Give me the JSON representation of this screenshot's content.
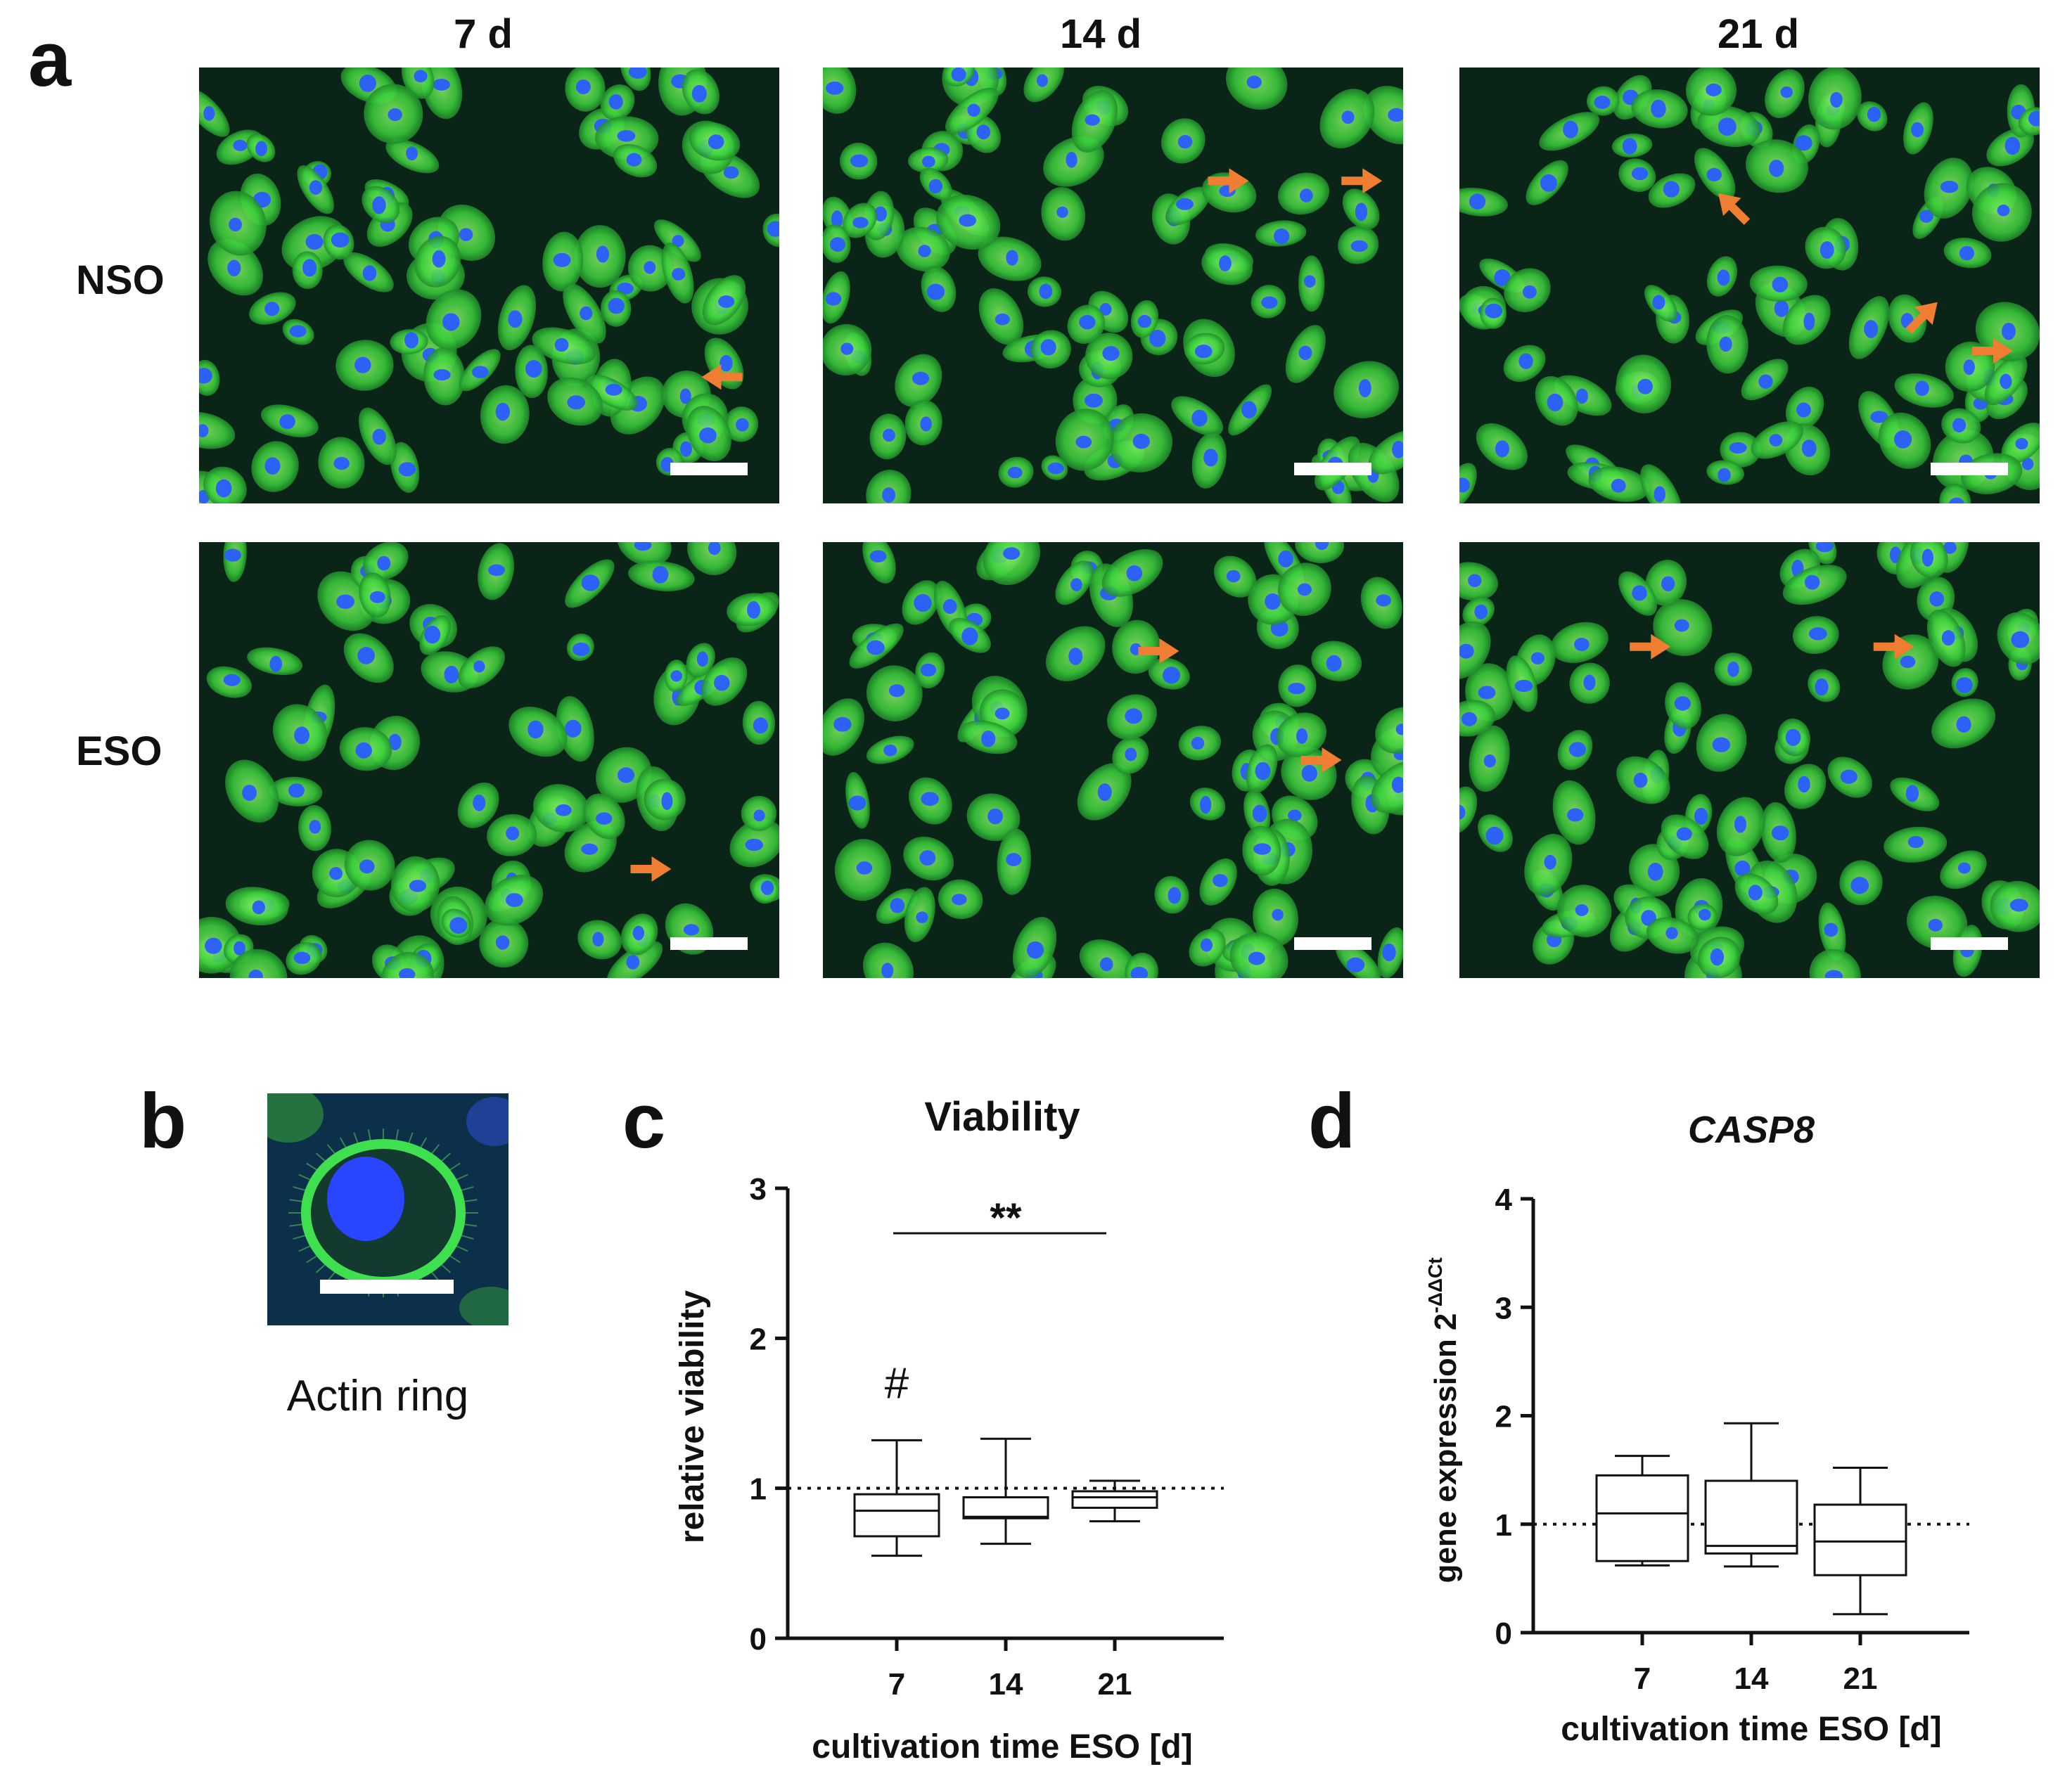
{
  "panels": {
    "a": "a",
    "b": "b",
    "c": "c",
    "d": "d"
  },
  "panel_a": {
    "columns": [
      "7 d",
      "14 d",
      "21 d"
    ],
    "rows": [
      "NSO",
      "ESO"
    ],
    "stain_colors": {
      "cytoskeleton": "#3cd23c",
      "nuclei": "#2a5cff",
      "background": "#0b2418",
      "arrow": "#ef7d32",
      "scale_bar": "#ffffff"
    }
  },
  "panel_b": {
    "caption": "Actin ring"
  },
  "chart_data": [
    {
      "type": "box",
      "panel": "c",
      "title": "Viability",
      "xlabel": "cultivation time ESO [d]",
      "ylabel": "relative viability",
      "categories": [
        "7",
        "14",
        "21"
      ],
      "ylim": [
        0,
        3
      ],
      "yticks": [
        "0",
        "1",
        "2",
        "3"
      ],
      "reference_line": 1,
      "boxes": [
        {
          "category": "7",
          "min": 0.55,
          "q1": 0.68,
          "median": 0.85,
          "q3": 0.96,
          "max": 1.32
        },
        {
          "category": "14",
          "min": 0.63,
          "q1": 0.8,
          "median": 0.81,
          "q3": 0.94,
          "max": 1.33
        },
        {
          "category": "21",
          "min": 0.78,
          "q1": 0.87,
          "median": 0.94,
          "q3": 0.98,
          "max": 1.05
        }
      ],
      "annotations": [
        {
          "text": "**",
          "from": "7",
          "to": "21"
        },
        {
          "text": "#",
          "category": "7"
        }
      ]
    },
    {
      "type": "box",
      "panel": "d",
      "title": "CASP8",
      "xlabel": "cultivation time ESO [d]",
      "ylabel_base": "gene expression 2",
      "ylabel_sup": "-ΔΔCt",
      "categories": [
        "7",
        "14",
        "21"
      ],
      "ylim": [
        0,
        4
      ],
      "yticks": [
        "0",
        "1",
        "2",
        "3",
        "4"
      ],
      "reference_line": 1,
      "boxes": [
        {
          "category": "7",
          "min": 0.62,
          "q1": 0.66,
          "median": 1.1,
          "q3": 1.45,
          "max": 1.63
        },
        {
          "category": "14",
          "min": 0.61,
          "q1": 0.73,
          "median": 0.8,
          "q3": 1.4,
          "max": 1.93
        },
        {
          "category": "21",
          "min": 0.17,
          "q1": 0.53,
          "median": 0.84,
          "q3": 1.18,
          "max": 1.52
        }
      ]
    }
  ]
}
